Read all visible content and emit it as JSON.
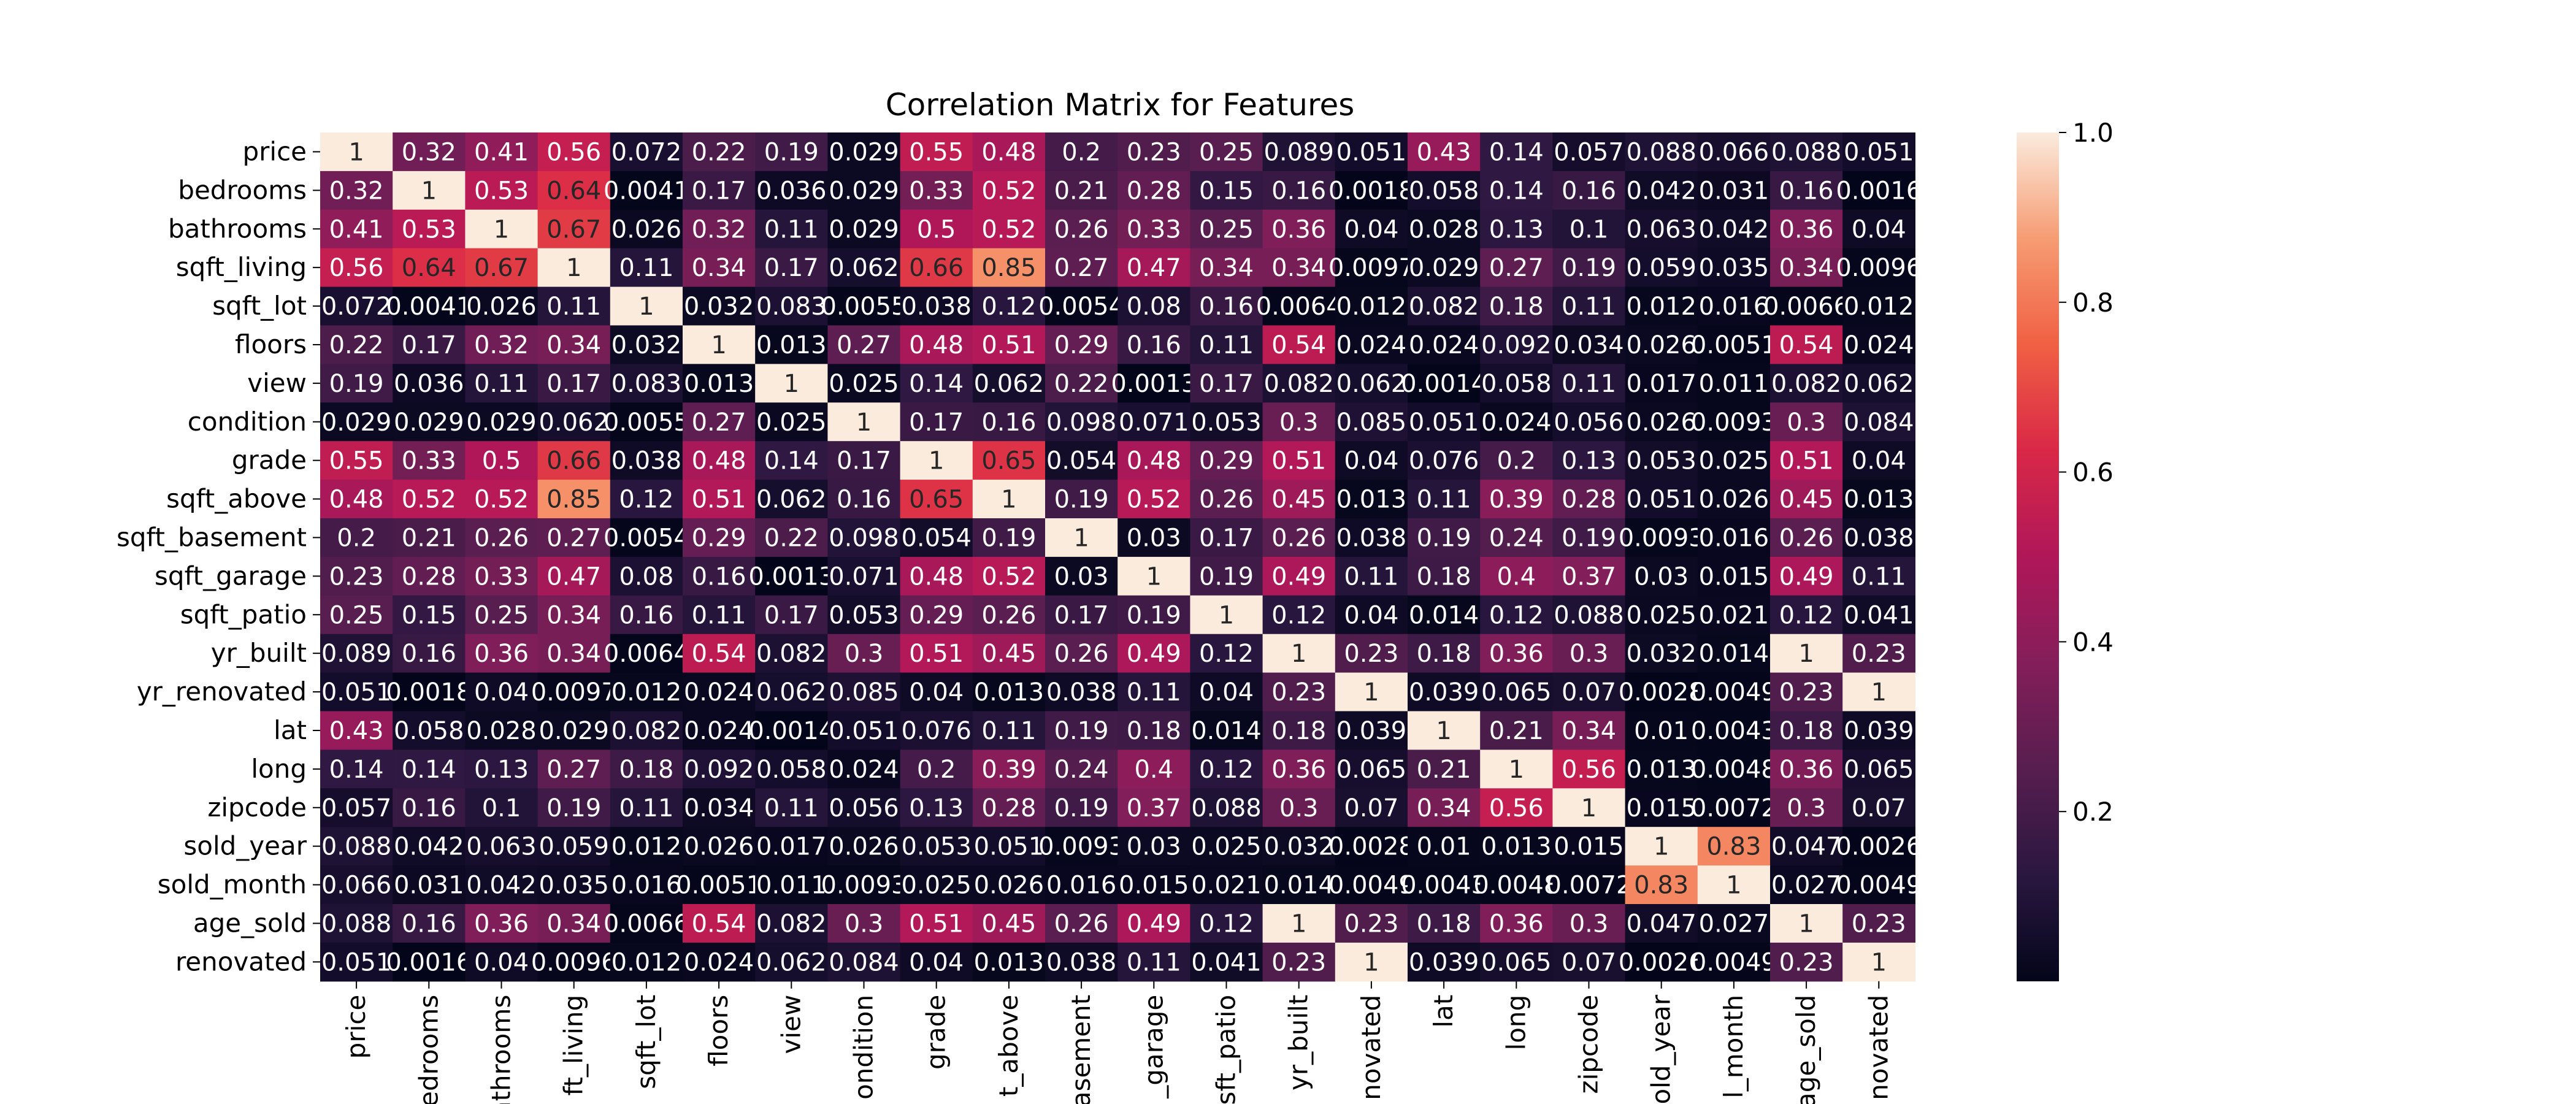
{
  "chart_data": {
    "type": "heatmap",
    "title": "Correlation Matrix for Features",
    "row_labels": [
      "price",
      "bedrooms",
      "bathrooms",
      "sqft_living",
      "sqft_lot",
      "floors",
      "view",
      "condition",
      "grade",
      "sqft_above",
      "sqft_basement",
      "sqft_garage",
      "sqft_patio",
      "yr_built",
      "yr_renovated",
      "lat",
      "long",
      "zipcode",
      "sold_year",
      "sold_month",
      "age_sold",
      "renovated"
    ],
    "col_labels": [
      "price",
      "edrooms",
      "athrooms",
      "ft_living",
      "sqft_lot",
      "floors",
      "view",
      "ondition",
      "grade",
      "t_above",
      "asement",
      "_garage",
      "sft_patio",
      "yr_built",
      "novated",
      "lat",
      "long",
      "zipcode",
      "old_year",
      "l_month",
      "age_sold",
      "novated"
    ],
    "values": [
      [
        "1",
        "0.32",
        "0.41",
        "0.56",
        "0.072",
        "0.22",
        "0.19",
        "0.029",
        "0.55",
        "0.48",
        "0.2",
        "0.23",
        "0.25",
        "0.089",
        "0.051",
        "0.43",
        "0.14",
        "0.057",
        "0.088",
        "0.066",
        "0.088",
        "0.051"
      ],
      [
        "0.32",
        "1",
        "0.53",
        "0.64",
        "0.0041",
        "0.17",
        "0.036",
        "0.029",
        "0.33",
        "0.52",
        "0.21",
        "0.28",
        "0.15",
        "0.16",
        "0.0018",
        "0.058",
        "0.14",
        "0.16",
        "0.042",
        "0.031",
        "0.16",
        "0.0016"
      ],
      [
        "0.41",
        "0.53",
        "1",
        "0.67",
        "0.026",
        "0.32",
        "0.11",
        "0.029",
        "0.5",
        "0.52",
        "0.26",
        "0.33",
        "0.25",
        "0.36",
        "0.04",
        "0.028",
        "0.13",
        "0.1",
        "0.063",
        "0.042",
        "0.36",
        "0.04"
      ],
      [
        "0.56",
        "0.64",
        "0.67",
        "1",
        "0.11",
        "0.34",
        "0.17",
        "0.062",
        "0.66",
        "0.85",
        "0.27",
        "0.47",
        "0.34",
        "0.34",
        "0.0097",
        "0.029",
        "0.27",
        "0.19",
        "0.059",
        "0.035",
        "0.34",
        "0.0096"
      ],
      [
        "0.072",
        "0.0041",
        "0.026",
        "0.11",
        "1",
        "0.032",
        "0.083",
        "0.0055",
        "0.038",
        "0.12",
        "0.0054",
        "0.08",
        "0.16",
        "0.0064",
        "0.012",
        "0.082",
        "0.18",
        "0.11",
        "0.012",
        "0.016",
        "0.0066",
        "0.012"
      ],
      [
        "0.22",
        "0.17",
        "0.32",
        "0.34",
        "0.032",
        "1",
        "0.013",
        "0.27",
        "0.48",
        "0.51",
        "0.29",
        "0.16",
        "0.11",
        "0.54",
        "0.024",
        "0.024",
        "0.092",
        "0.034",
        "0.026",
        "0.0051",
        "0.54",
        "0.024"
      ],
      [
        "0.19",
        "0.036",
        "0.11",
        "0.17",
        "0.083",
        "0.013",
        "1",
        "0.025",
        "0.14",
        "0.062",
        "0.22",
        "0.0013",
        "0.17",
        "0.082",
        "0.062",
        "0.0014",
        "0.058",
        "0.11",
        "0.017",
        "0.011",
        "0.082",
        "0.062"
      ],
      [
        "0.029",
        "0.029",
        "0.029",
        "0.062",
        "0.0055",
        "0.27",
        "0.025",
        "1",
        "0.17",
        "0.16",
        "0.098",
        "0.071",
        "0.053",
        "0.3",
        "0.085",
        "0.051",
        "0.024",
        "0.056",
        "0.026",
        "0.0093",
        "0.3",
        "0.084"
      ],
      [
        "0.55",
        "0.33",
        "0.5",
        "0.66",
        "0.038",
        "0.48",
        "0.14",
        "0.17",
        "1",
        "0.65",
        "0.054",
        "0.48",
        "0.29",
        "0.51",
        "0.04",
        "0.076",
        "0.2",
        "0.13",
        "0.053",
        "0.025",
        "0.51",
        "0.04"
      ],
      [
        "0.48",
        "0.52",
        "0.52",
        "0.85",
        "0.12",
        "0.51",
        "0.062",
        "0.16",
        "0.65",
        "1",
        "0.19",
        "0.52",
        "0.26",
        "0.45",
        "0.013",
        "0.11",
        "0.39",
        "0.28",
        "0.051",
        "0.026",
        "0.45",
        "0.013"
      ],
      [
        "0.2",
        "0.21",
        "0.26",
        "0.27",
        "0.0054",
        "0.29",
        "0.22",
        "0.098",
        "0.054",
        "0.19",
        "1",
        "0.03",
        "0.17",
        "0.26",
        "0.038",
        "0.19",
        "0.24",
        "0.19",
        "0.0093",
        "0.016",
        "0.26",
        "0.038"
      ],
      [
        "0.23",
        "0.28",
        "0.33",
        "0.47",
        "0.08",
        "0.16",
        "0.0013",
        "0.071",
        "0.48",
        "0.52",
        "0.03",
        "1",
        "0.19",
        "0.49",
        "0.11",
        "0.18",
        "0.4",
        "0.37",
        "0.03",
        "0.015",
        "0.49",
        "0.11"
      ],
      [
        "0.25",
        "0.15",
        "0.25",
        "0.34",
        "0.16",
        "0.11",
        "0.17",
        "0.053",
        "0.29",
        "0.26",
        "0.17",
        "0.19",
        "1",
        "0.12",
        "0.04",
        "0.014",
        "0.12",
        "0.088",
        "0.025",
        "0.021",
        "0.12",
        "0.041"
      ],
      [
        "0.089",
        "0.16",
        "0.36",
        "0.34",
        "0.0064",
        "0.54",
        "0.082",
        "0.3",
        "0.51",
        "0.45",
        "0.26",
        "0.49",
        "0.12",
        "1",
        "0.23",
        "0.18",
        "0.36",
        "0.3",
        "0.032",
        "0.014",
        "1",
        "0.23"
      ],
      [
        "0.051",
        "0.0018",
        "0.04",
        "0.0097",
        "0.012",
        "0.024",
        "0.062",
        "0.085",
        "0.04",
        "0.013",
        "0.038",
        "0.11",
        "0.04",
        "0.23",
        "1",
        "0.039",
        "0.065",
        "0.07",
        "0.0028",
        "0.0049",
        "0.23",
        "1"
      ],
      [
        "0.43",
        "0.058",
        "0.028",
        "0.029",
        "0.082",
        "0.024",
        "0.0014",
        "0.051",
        "0.076",
        "0.11",
        "0.19",
        "0.18",
        "0.014",
        "0.18",
        "0.039",
        "1",
        "0.21",
        "0.34",
        "0.01",
        "0.0043",
        "0.18",
        "0.039"
      ],
      [
        "0.14",
        "0.14",
        "0.13",
        "0.27",
        "0.18",
        "0.092",
        "0.058",
        "0.024",
        "0.2",
        "0.39",
        "0.24",
        "0.4",
        "0.12",
        "0.36",
        "0.065",
        "0.21",
        "1",
        "0.56",
        "0.013",
        "0.0048",
        "0.36",
        "0.065"
      ],
      [
        "0.057",
        "0.16",
        "0.1",
        "0.19",
        "0.11",
        "0.034",
        "0.11",
        "0.056",
        "0.13",
        "0.28",
        "0.19",
        "0.37",
        "0.088",
        "0.3",
        "0.07",
        "0.34",
        "0.56",
        "1",
        "0.015",
        "0.0072",
        "0.3",
        "0.07"
      ],
      [
        "0.088",
        "0.042",
        "0.063",
        "0.059",
        "0.012",
        "0.026",
        "0.017",
        "0.026",
        "0.053",
        "0.051",
        "0.0093",
        "0.03",
        "0.025",
        "0.032",
        "0.0028",
        "0.01",
        "0.013",
        "0.015",
        "1",
        "0.83",
        "0.047",
        "0.0026"
      ],
      [
        "0.066",
        "0.031",
        "0.042",
        "0.035",
        "0.016",
        "0.0051",
        "0.011",
        "0.0093",
        "0.025",
        "0.026",
        "0.016",
        "0.015",
        "0.021",
        "0.014",
        "0.0049",
        "0.0043",
        "0.0048",
        "0.0072",
        "0.83",
        "1",
        "0.027",
        "0.0049"
      ],
      [
        "0.088",
        "0.16",
        "0.36",
        "0.34",
        "0.0066",
        "0.54",
        "0.082",
        "0.3",
        "0.51",
        "0.45",
        "0.26",
        "0.49",
        "0.12",
        "1",
        "0.23",
        "0.18",
        "0.36",
        "0.3",
        "0.047",
        "0.027",
        "1",
        "0.23"
      ],
      [
        "0.051",
        "0.0016",
        "0.04",
        "0.0096",
        "0.012",
        "0.024",
        "0.062",
        "0.084",
        "0.04",
        "0.013",
        "0.038",
        "0.11",
        "0.041",
        "0.23",
        "1",
        "0.039",
        "0.065",
        "0.07",
        "0.0026",
        "0.0049",
        "0.23",
        "1"
      ]
    ],
    "colorbar": {
      "range": [
        0.0,
        1.0
      ],
      "ticks": [
        "0.2",
        "0.4",
        "0.6",
        "0.8",
        "1.0"
      ],
      "colormap": "rocket"
    }
  }
}
